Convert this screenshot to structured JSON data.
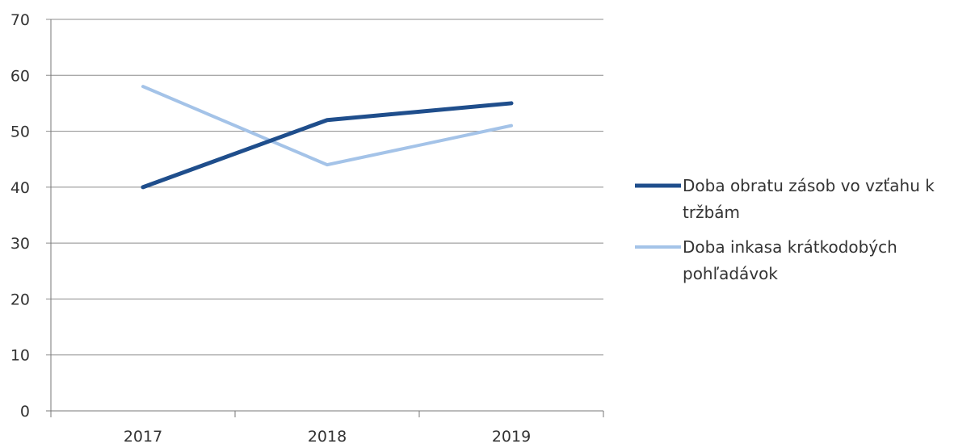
{
  "chart_data": {
    "type": "line",
    "title": "",
    "xlabel": "",
    "ylabel": "",
    "categories": [
      "2017",
      "2018",
      "2019"
    ],
    "ylim": [
      0,
      70
    ],
    "yticks": [
      0,
      10,
      20,
      30,
      40,
      50,
      60,
      70
    ],
    "grid": true,
    "legend_position": "right",
    "series": [
      {
        "name": "Doba obratu zásob vo vzťahu k tržbám",
        "legend_lines": [
          "Doba obratu zásob vo vzťahu k",
          "tržbám"
        ],
        "values": [
          40,
          52,
          55
        ],
        "color": "#1f4e8c"
      },
      {
        "name": "Doba inkasa krátkodobých pohľadávok",
        "legend_lines": [
          "Doba inkasa krátkodobých",
          "pohľadávok"
        ],
        "values": [
          58,
          44,
          51
        ],
        "color": "#a4c3e8"
      }
    ]
  }
}
